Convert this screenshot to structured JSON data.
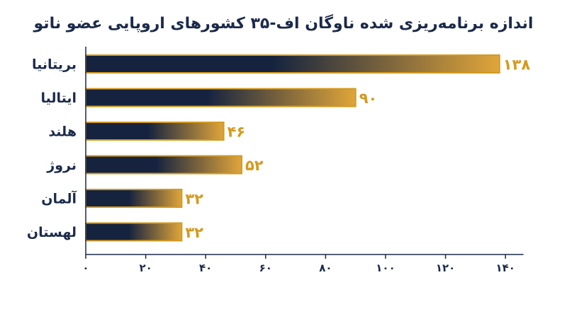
{
  "chart_data": {
    "type": "bar",
    "orientation": "horizontal",
    "title": "اندازه برنامه‌ریزی شده ناوگان اف-۳۵ کشورهای اروپایی عضو ناتو",
    "categories": [
      "بریتانیا",
      "ایتالیا",
      "هلند",
      "نروژ",
      "آلمان",
      "لهستان"
    ],
    "values": [
      138,
      90,
      46,
      52,
      32,
      32
    ],
    "value_labels": [
      "۱۳۸",
      "۹۰",
      "۴۶",
      "۵۲",
      "۳۲",
      "۳۲"
    ],
    "xlim": [
      0,
      146
    ],
    "x_ticks": [
      0,
      20,
      40,
      60,
      80,
      100,
      120,
      140
    ],
    "x_tick_labels": [
      "۰",
      "۲۰",
      "۴۰",
      "۶۰",
      "۸۰",
      "۱۰۰",
      "۱۲۰",
      "۱۴۰"
    ],
    "grid": false,
    "legend": "none",
    "colors": {
      "bar_dark": "#15233f",
      "bar_light": "#e0a53a",
      "bar_border": "#d39a1e",
      "text": "#1b2a4a",
      "value_text": "#d39a1e",
      "axis": "#1b2a4a"
    }
  }
}
